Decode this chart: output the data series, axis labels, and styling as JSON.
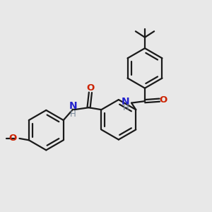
{
  "bg_color": "#e8e8e8",
  "bond_color": "#1a1a1a",
  "N_color": "#2222cc",
  "O_color": "#cc2200",
  "H_color": "#778899",
  "lw": 1.6,
  "xlim": [
    0,
    10
  ],
  "ylim": [
    0,
    10
  ],
  "r1cx": 6.85,
  "r1cy": 6.8,
  "r2cx": 5.6,
  "r2cy": 4.35,
  "r3cx": 2.15,
  "r3cy": 3.85,
  "ring_r": 0.95
}
